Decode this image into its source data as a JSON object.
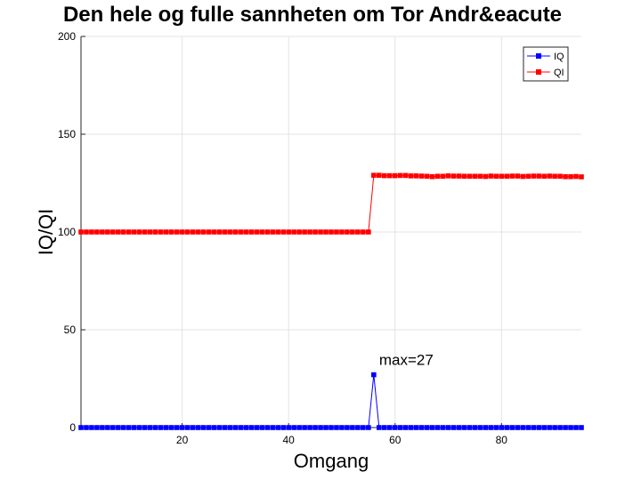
{
  "chart_data": {
    "type": "line",
    "title": "Den hele og fulle sannheten om Tor Andr&eacute",
    "xlabel": "Omgang",
    "ylabel": "IQ/QI",
    "xlim": [
      1,
      95
    ],
    "ylim": [
      0,
      200
    ],
    "xticks": [
      20,
      40,
      60,
      80
    ],
    "yticks": [
      0,
      50,
      100,
      150,
      200
    ],
    "grid": true,
    "legend_position": "top-right",
    "series": [
      {
        "name": "IQ",
        "color": "#0000ff",
        "marker": "square",
        "x": [
          1,
          2,
          3,
          4,
          5,
          6,
          7,
          8,
          9,
          10,
          11,
          12,
          13,
          14,
          15,
          16,
          17,
          18,
          19,
          20,
          21,
          22,
          23,
          24,
          25,
          26,
          27,
          28,
          29,
          30,
          31,
          32,
          33,
          34,
          35,
          36,
          37,
          38,
          39,
          40,
          41,
          42,
          43,
          44,
          45,
          46,
          47,
          48,
          49,
          50,
          51,
          52,
          53,
          54,
          55,
          56,
          57,
          58,
          59,
          60,
          61,
          62,
          63,
          64,
          65,
          66,
          67,
          68,
          69,
          70,
          71,
          72,
          73,
          74,
          75,
          76,
          77,
          78,
          79,
          80,
          81,
          82,
          83,
          84,
          85,
          86,
          87,
          88,
          89,
          90,
          91,
          92,
          93,
          94,
          95
        ],
        "values": [
          0,
          0,
          0,
          0,
          0,
          0,
          0,
          0,
          0,
          0,
          0,
          0,
          0,
          0,
          0,
          0,
          0,
          0,
          0,
          0,
          0,
          0,
          0,
          0,
          0,
          0,
          0,
          0,
          0,
          0,
          0,
          0,
          0,
          0,
          0,
          0,
          0,
          0,
          0,
          0,
          0,
          0,
          0,
          0,
          0,
          0,
          0,
          0,
          0,
          0,
          0,
          0,
          0,
          0,
          0,
          27,
          0,
          0,
          0,
          0,
          0,
          0,
          0,
          0,
          0,
          0,
          0,
          0,
          0,
          0,
          0,
          0,
          0,
          0,
          0,
          0,
          0,
          0,
          0,
          0,
          0,
          0,
          0,
          0,
          0,
          0,
          0,
          0,
          0,
          0,
          0,
          0,
          0,
          0,
          0
        ]
      },
      {
        "name": "QI",
        "color": "#ff0000",
        "marker": "square",
        "x": [
          1,
          2,
          3,
          4,
          5,
          6,
          7,
          8,
          9,
          10,
          11,
          12,
          13,
          14,
          15,
          16,
          17,
          18,
          19,
          20,
          21,
          22,
          23,
          24,
          25,
          26,
          27,
          28,
          29,
          30,
          31,
          32,
          33,
          34,
          35,
          36,
          37,
          38,
          39,
          40,
          41,
          42,
          43,
          44,
          45,
          46,
          47,
          48,
          49,
          50,
          51,
          52,
          53,
          54,
          55,
          56,
          57,
          58,
          59,
          60,
          61,
          62,
          63,
          64,
          65,
          66,
          67,
          68,
          69,
          70,
          71,
          72,
          73,
          74,
          75,
          76,
          77,
          78,
          79,
          80,
          81,
          82,
          83,
          84,
          85,
          86,
          87,
          88,
          89,
          90,
          91,
          92,
          93,
          94,
          95
        ],
        "values": [
          100,
          100,
          100,
          100,
          100,
          100,
          100,
          100,
          100,
          100,
          100,
          100,
          100,
          100,
          100,
          100,
          100,
          100,
          100,
          100,
          100,
          100,
          100,
          100,
          100,
          100,
          100,
          100,
          100,
          100,
          100,
          100,
          100,
          100,
          100,
          100,
          100,
          100,
          100,
          100,
          100,
          100,
          100,
          100,
          100,
          100,
          100,
          100,
          100,
          100,
          100,
          100,
          100,
          100,
          100,
          129,
          129,
          128.8,
          128.8,
          128.8,
          128.9,
          128.9,
          128.7,
          128.7,
          128.6,
          128.5,
          128.3,
          128.5,
          128.5,
          128.7,
          128.6,
          128.6,
          128.5,
          128.5,
          128.5,
          128.5,
          128.4,
          128.6,
          128.5,
          128.5,
          128.5,
          128.6,
          128.6,
          128.4,
          128.5,
          128.6,
          128.6,
          128.5,
          128.6,
          128.5,
          128.5,
          128.3,
          128.3,
          128.4,
          128.2
        ]
      }
    ],
    "annotations": [
      {
        "text": "max=27",
        "x": 56,
        "y": 27
      }
    ]
  }
}
